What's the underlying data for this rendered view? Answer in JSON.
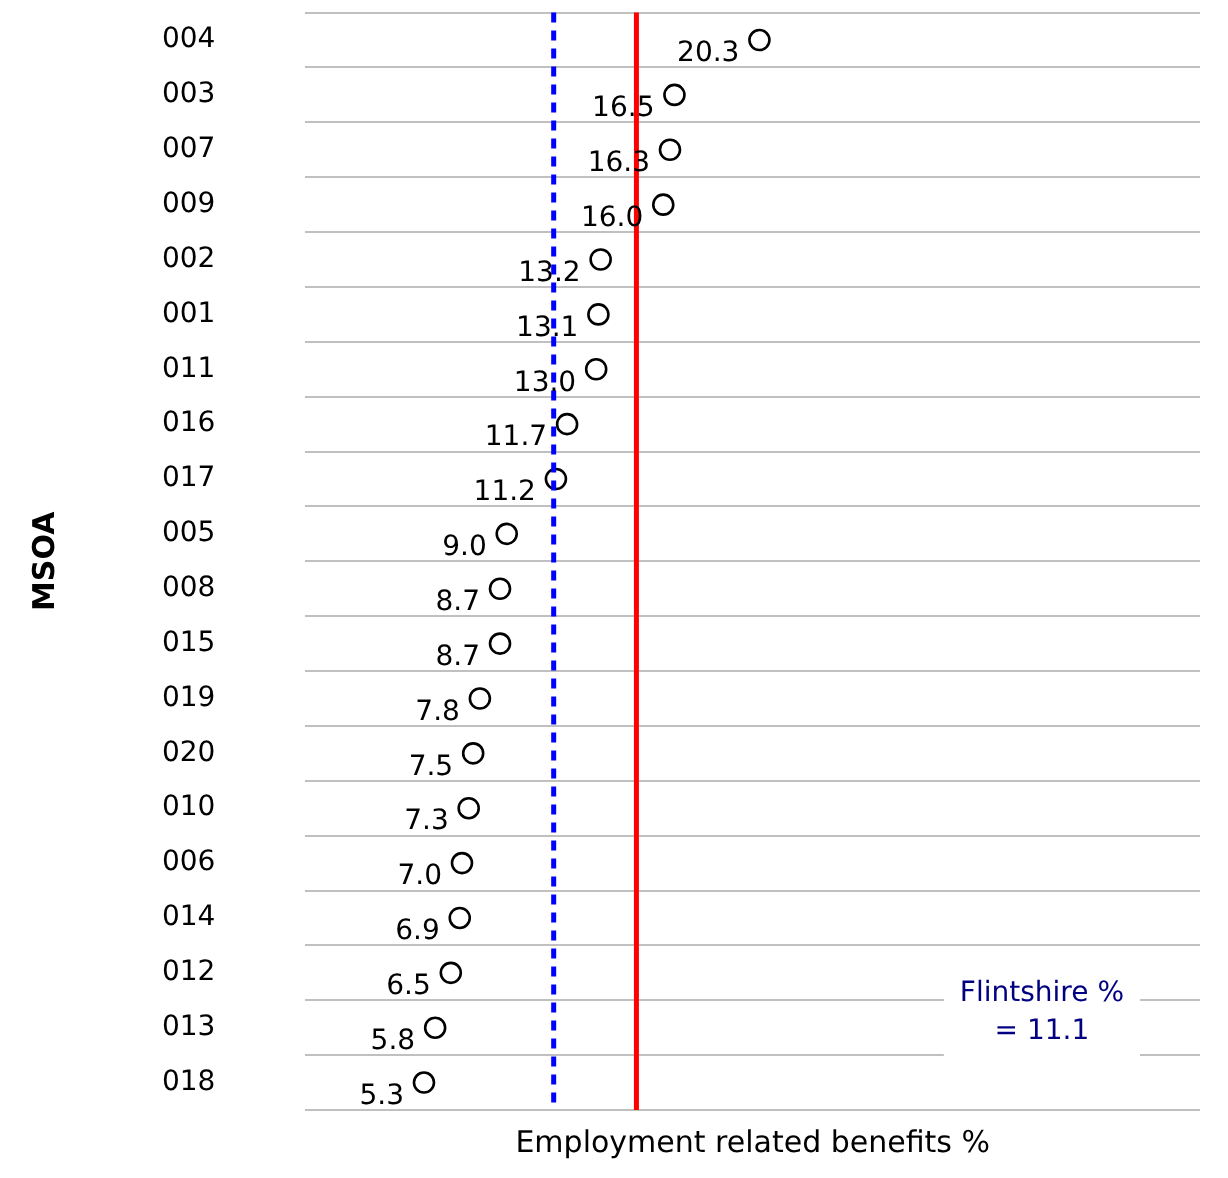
{
  "chart_data": {
    "type": "scatter",
    "orientation": "horizontal",
    "xlabel": "Employment related benefits %",
    "ylabel": "MSOA",
    "categories": [
      "004",
      "003",
      "007",
      "009",
      "002",
      "001",
      "011",
      "016",
      "017",
      "005",
      "008",
      "015",
      "019",
      "020",
      "010",
      "006",
      "014",
      "012",
      "013",
      "018"
    ],
    "values": [
      20.3,
      16.5,
      16.3,
      16.0,
      13.2,
      13.1,
      13.0,
      11.7,
      11.2,
      9.0,
      8.7,
      8.7,
      7.8,
      7.5,
      7.3,
      7.0,
      6.9,
      6.5,
      5.8,
      5.3
    ],
    "value_labels": [
      "20.3",
      "16.5",
      "16.3",
      "16.0",
      "13.2",
      "13.1",
      "13.0",
      "11.7",
      "11.2",
      "9.0",
      "8.7",
      "8.7",
      "7.8",
      "7.5",
      "7.3",
      "7.0",
      "6.9",
      "6.5",
      "5.8",
      "5.3"
    ],
    "annotations": [
      "Flintshire % = 11.1"
    ],
    "color": "#000000",
    "marker": "circle",
    "xlim": [
      0,
      40
    ],
    "tick_labels": "y",
    "grid": "y",
    "ref_lines": [
      {
        "axis": "x",
        "value": 11.1,
        "color": "#0000ff",
        "line_style": "dashed"
      },
      {
        "axis": "x",
        "value": 14.8,
        "color": "#ff0000",
        "line_style": "solid"
      }
    ]
  }
}
